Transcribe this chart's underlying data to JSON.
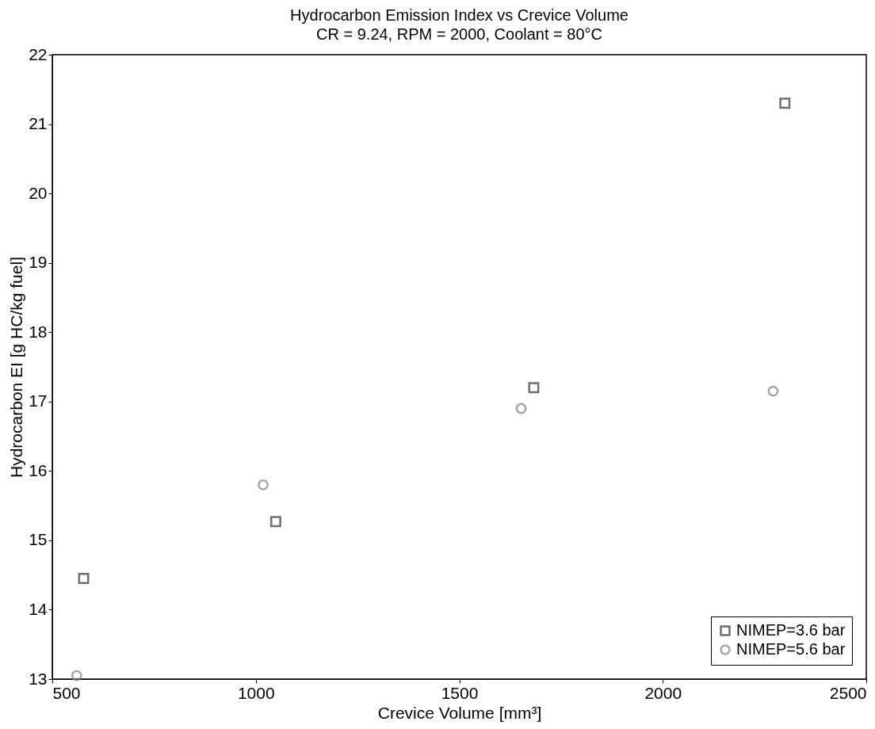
{
  "chart_data": {
    "type": "scatter",
    "title": "Hydrocarbon Emission Index vs Crevice Volume",
    "subtitle": "CR = 9.24, RPM = 2000, Coolant = 80°C",
    "xlabel": "Crevice Volume [mm³]",
    "ylabel": "Hydrocarbon EI [g HC/kg fuel]",
    "series": [
      {
        "name": "NIMEP=3.6 bar",
        "color": "#333333",
        "marker": "square",
        "x": [
          577,
          1049,
          1683,
          2300
        ],
        "values": [
          14.45,
          15.27,
          17.2,
          21.3
        ]
      },
      {
        "name": "NIMEP=5.6 bar",
        "color": "#808080",
        "marker": "circle",
        "x": [
          560,
          1018,
          1652,
          2271
        ],
        "values": [
          13.05,
          15.8,
          16.9,
          17.15
        ]
      }
    ],
    "xlim": [
      500,
      2500
    ],
    "xticks": [
      500,
      1000,
      1500,
      2000,
      2500
    ],
    "ylim": [
      13,
      22
    ],
    "yticks": [
      13,
      14,
      15,
      16,
      17,
      18,
      19,
      20,
      21,
      22
    ],
    "grid": false,
    "legend": "bottom right"
  }
}
